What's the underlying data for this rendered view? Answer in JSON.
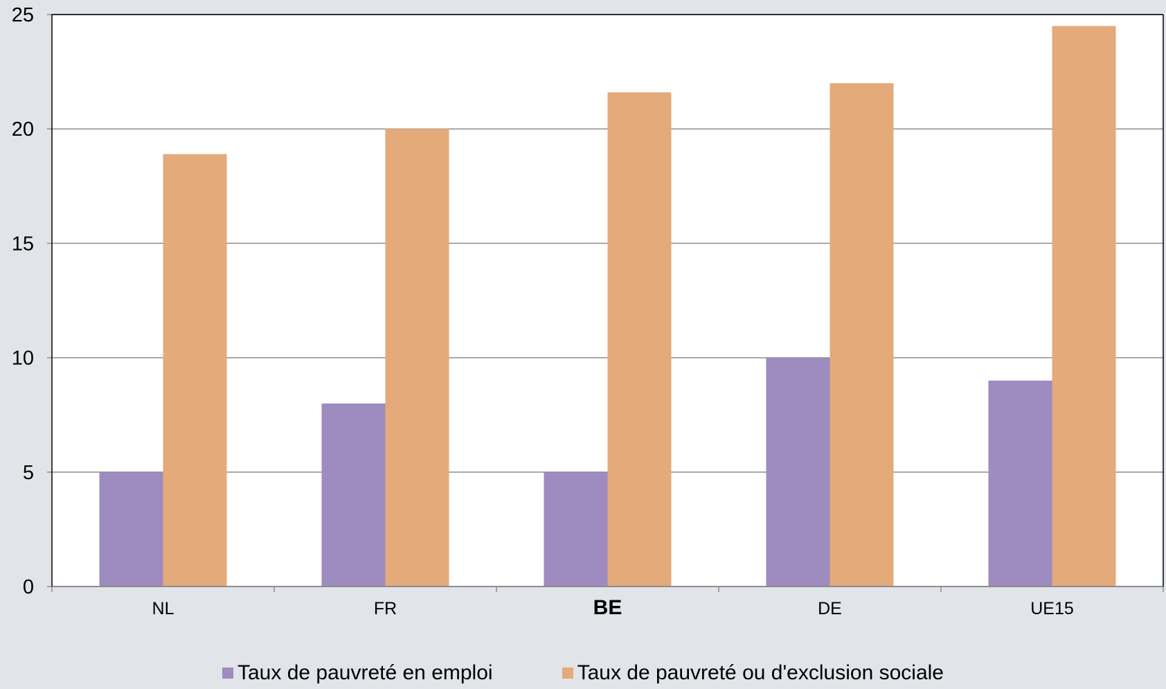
{
  "chart_data": {
    "type": "bar",
    "categories": [
      "NL",
      "FR",
      "BE",
      "DE",
      "UE15"
    ],
    "highlight_category": "BE",
    "series": [
      {
        "name": "Taux de pauvreté en emploi",
        "color": "#9e8bbf",
        "values": [
          5,
          8,
          5,
          10,
          9
        ]
      },
      {
        "name": "Taux de pauvreté ou d'exclusion sociale",
        "color": "#e4aa7a",
        "values": [
          18.9,
          20,
          21.6,
          22,
          24.5
        ]
      }
    ],
    "ylim": [
      0,
      25
    ],
    "yticks": [
      0,
      5,
      10,
      15,
      20,
      25
    ],
    "grid": true,
    "legend_position": "bottom",
    "title": "",
    "xlabel": "",
    "ylabel": ""
  }
}
